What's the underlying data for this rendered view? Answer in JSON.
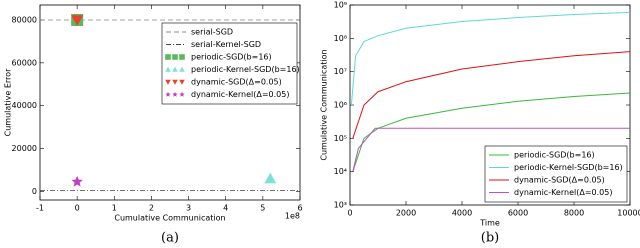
{
  "chart_data": [
    {
      "type": "scatter",
      "caption": "(a)",
      "x_label": "Cumulative Communication",
      "y_label": "Cumulative Error",
      "x_offset_label": "1e8",
      "xlim": [
        -1,
        6
      ],
      "xticks": [
        -1,
        0,
        1,
        2,
        3,
        4,
        5,
        6
      ],
      "ylim": [
        -4000,
        87000
      ],
      "yticks": [
        0,
        20000,
        40000,
        60000,
        80000
      ],
      "legend": "center right",
      "series": [
        {
          "name": "serial-SGD",
          "color": "#888888",
          "style": "dashed",
          "y": 80000
        },
        {
          "name": "serial-Kernel-SGD",
          "color": "#444444",
          "style": "dashdot",
          "y": 500
        },
        {
          "name": "periodic-SGD(b=16)",
          "color": "#5cb85c",
          "marker": "square",
          "x": [
            0
          ],
          "values": [
            80000
          ]
        },
        {
          "name": "periodic-Kernel-SGD(b=16)",
          "color": "#7fe0d8",
          "marker": "triangle-up",
          "x": [
            5.2
          ],
          "values": [
            6000
          ]
        },
        {
          "name": "dynamic-SGD(Δ=0.05)",
          "color": "#e8412c",
          "marker": "triangle-down",
          "x": [
            0
          ],
          "values": [
            80000
          ]
        },
        {
          "name": "dynamic-Kernel(Δ=0.05)",
          "color": "#c040c0",
          "marker": "star",
          "x": [
            0
          ],
          "values": [
            4500
          ]
        }
      ]
    },
    {
      "type": "line",
      "caption": "(b)",
      "x_label": "Time",
      "y_label": "Cumulative Communication",
      "xlim": [
        0,
        10000
      ],
      "xticks": [
        0,
        2000,
        4000,
        6000,
        8000,
        10000
      ],
      "ylim": [
        1000,
        1000000000
      ],
      "log_y": true,
      "yticks": [
        {
          "value": 1000,
          "label": "10³"
        },
        {
          "value": 10000,
          "label": "10⁴"
        },
        {
          "value": 100000,
          "label": "10⁵"
        },
        {
          "value": 1000000,
          "label": "10⁶"
        },
        {
          "value": 10000000,
          "label": "10⁷"
        },
        {
          "value": 100000000,
          "label": "10⁸"
        },
        {
          "value": 1000000000,
          "label": "10⁹"
        }
      ],
      "legend": "lower right",
      "series": [
        {
          "name": "periodic-SGD(b=16)",
          "color": "#3cb83c",
          "x": [
            100,
            500,
            1000,
            2000,
            4000,
            6000,
            8000,
            10000
          ],
          "values": [
            10000,
            100000,
            200000,
            400000,
            800000,
            1300000,
            1800000,
            2300000
          ]
        },
        {
          "name": "periodic-Kernel-SGD(b=16)",
          "color": "#5fd8d0",
          "x": [
            50,
            200,
            500,
            1000,
            2000,
            4000,
            6000,
            8000,
            10000
          ],
          "values": [
            1000000,
            30000000,
            80000000,
            120000000,
            200000000,
            320000000,
            420000000,
            520000000,
            600000000
          ]
        },
        {
          "name": "dynamic-SGD(Δ=0.05)",
          "color": "#e01010",
          "x": [
            100,
            500,
            1000,
            2000,
            4000,
            6000,
            8000,
            10000
          ],
          "values": [
            100000,
            1000000,
            2500000,
            5000000,
            12000000,
            20000000,
            30000000,
            40000000
          ]
        },
        {
          "name": "dynamic-Kernel(Δ=0.05)",
          "color": "#c050c0",
          "x": [
            100,
            300,
            600,
            900,
            10000
          ],
          "values": [
            10000,
            50000,
            100000,
            200000,
            200000
          ]
        }
      ]
    }
  ]
}
